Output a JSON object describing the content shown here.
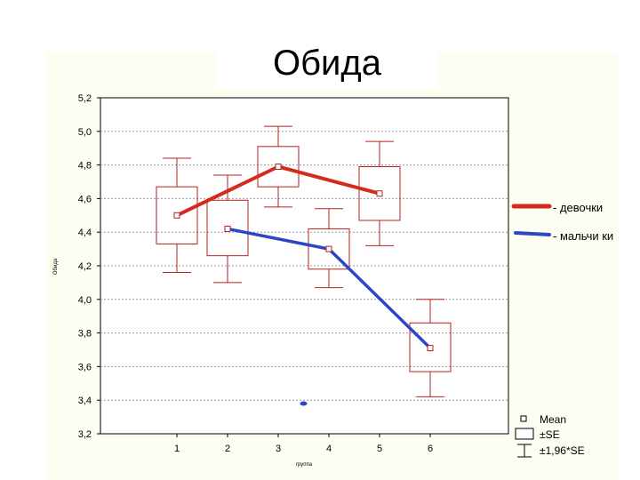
{
  "slide": {
    "title": "Обида"
  },
  "chart_data": {
    "type": "box",
    "title": "Обида",
    "xlabel": "группа",
    "ylabel": "Обида",
    "ylim": [
      3.2,
      5.2
    ],
    "yticks": [
      "5,2",
      "5,0",
      "4,8",
      "4,6",
      "4,4",
      "4,2",
      "4,0",
      "3,8",
      "3,6",
      "3,4",
      "3,2"
    ],
    "ytick_values": [
      5.2,
      5.0,
      4.8,
      4.6,
      4.4,
      4.2,
      4.0,
      3.8,
      3.6,
      3.4,
      3.2
    ],
    "xticks": [
      "1",
      "2",
      "3",
      "4",
      "5",
      "6"
    ],
    "xtick_values": [
      1,
      2,
      3,
      4,
      5,
      6
    ],
    "groups": [
      {
        "x": 1,
        "mean": 4.5,
        "se_low": 4.33,
        "se_high": 4.67,
        "ci_low": 4.16,
        "ci_high": 4.84
      },
      {
        "x": 2,
        "mean": 4.42,
        "se_low": 4.26,
        "se_high": 4.59,
        "ci_low": 4.1,
        "ci_high": 4.74
      },
      {
        "x": 3,
        "mean": 4.79,
        "se_low": 4.67,
        "se_high": 4.91,
        "ci_low": 4.55,
        "ci_high": 5.03
      },
      {
        "x": 4,
        "mean": 4.3,
        "se_low": 4.18,
        "se_high": 4.42,
        "ci_low": 4.07,
        "ci_high": 4.54
      },
      {
        "x": 5,
        "mean": 4.63,
        "se_low": 4.47,
        "se_high": 4.79,
        "ci_low": 4.32,
        "ci_high": 4.94
      },
      {
        "x": 6,
        "mean": 3.71,
        "se_low": 3.57,
        "se_high": 3.86,
        "ci_low": 3.42,
        "ci_high": 4.0
      }
    ],
    "series": [
      {
        "name": "девочки",
        "color": "#d52b1e",
        "x": [
          1,
          3,
          5
        ],
        "values": [
          4.5,
          4.79,
          4.63
        ]
      },
      {
        "name": "мальчики",
        "color": "#2f45c8",
        "x": [
          2,
          4,
          6
        ],
        "values": [
          4.42,
          4.3,
          3.71
        ]
      }
    ],
    "outlier": {
      "x": 3.5,
      "value": 3.38,
      "color": "#2f45c8"
    },
    "legend": {
      "girls_label": "- девочки",
      "boys_label": "- мальчи ки",
      "mean_label": "Mean",
      "se_label": "±SE",
      "ci_label": "±1,96*SE"
    },
    "colors": {
      "box": "#b22222",
      "background": "#fdfdf2",
      "grid": "#999999"
    }
  }
}
